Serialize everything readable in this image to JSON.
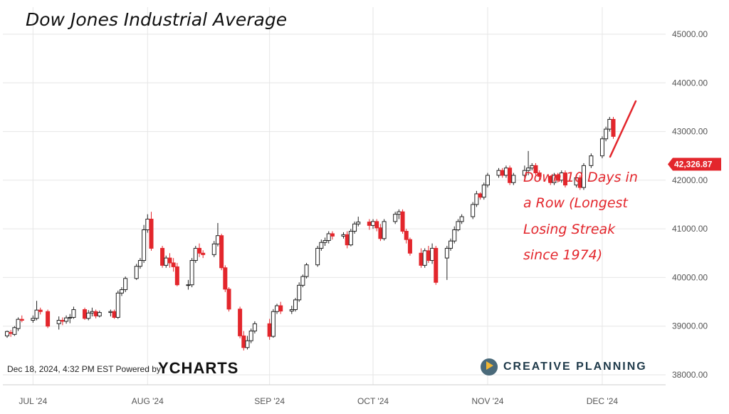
{
  "chart_data": {
    "type": "candlestick",
    "title": "Dow Jones Industrial Average",
    "y_ticks": [
      "45000.00",
      "44000.00",
      "43000.00",
      "42000.00",
      "41000.00",
      "40000.00",
      "39000.00",
      "38000.00"
    ],
    "y_tick_values": [
      45000,
      44000,
      43000,
      42000,
      41000,
      40000,
      39000,
      38000
    ],
    "ylim": [
      37800,
      45300
    ],
    "x_ticks": [
      {
        "label": "JUL '24",
        "date": "2024-07-01"
      },
      {
        "label": "AUG '24",
        "date": "2024-08-01"
      },
      {
        "label": "SEP '24",
        "date": "2024-09-03"
      },
      {
        "label": "OCT '24",
        "date": "2024-10-01"
      },
      {
        "label": "NOV '24",
        "date": "2024-11-01"
      },
      {
        "label": "DEC '24",
        "date": "2024-12-02"
      }
    ],
    "grid": true,
    "last_price_label": "42,326.87",
    "last_price_value": 42326.87,
    "annotation_lines": [
      "Down 10 Days in",
      "a Row (Longest",
      "Losing Streak",
      "since 1974)"
    ],
    "candles": [
      [
        "2024-06-24",
        38800,
        38890,
        38760,
        38910
      ],
      [
        "2024-06-25",
        38870,
        38850,
        38780,
        38920
      ],
      [
        "2024-06-26",
        38830,
        38970,
        38800,
        39000
      ],
      [
        "2024-06-27",
        38950,
        39140,
        38900,
        39180
      ],
      [
        "2024-06-28",
        39140,
        39120,
        39080,
        39220
      ],
      [
        "2024-07-01",
        39120,
        39160,
        39070,
        39220
      ],
      [
        "2024-07-02",
        39160,
        39330,
        39120,
        39520
      ],
      [
        "2024-07-03",
        39330,
        39300,
        39240,
        39380
      ],
      [
        "2024-07-05",
        39300,
        39000,
        38960,
        39340
      ],
      [
        "2024-07-08",
        39050,
        39120,
        38930,
        39200
      ],
      [
        "2024-07-09",
        39120,
        39100,
        39020,
        39180
      ],
      [
        "2024-07-10",
        39100,
        39170,
        39050,
        39220
      ],
      [
        "2024-07-11",
        39170,
        39180,
        39060,
        39250
      ],
      [
        "2024-07-12",
        39180,
        39340,
        39150,
        39400
      ],
      [
        "2024-07-15",
        39340,
        39160,
        39130,
        39380
      ],
      [
        "2024-07-16",
        39160,
        39270,
        39120,
        39330
      ],
      [
        "2024-07-17",
        39270,
        39300,
        39200,
        39380
      ],
      [
        "2024-07-18",
        39300,
        39210,
        39160,
        39340
      ],
      [
        "2024-07-19",
        39210,
        39280,
        39180,
        39320
      ],
      [
        "2024-07-22",
        39280,
        39300,
        39200,
        39340
      ],
      [
        "2024-07-23",
        39300,
        39180,
        39150,
        39340
      ],
      [
        "2024-07-24",
        39180,
        39680,
        39150,
        39730
      ],
      [
        "2024-07-25",
        39680,
        39750,
        39620,
        39800
      ],
      [
        "2024-07-26",
        39750,
        39980,
        39700,
        40020
      ],
      [
        "2024-07-29",
        39980,
        40230,
        39950,
        40280
      ],
      [
        "2024-07-30",
        40230,
        40350,
        40180,
        40400
      ],
      [
        "2024-07-31",
        40350,
        40980,
        40300,
        41080
      ],
      [
        "2024-08-01",
        40980,
        41200,
        40920,
        41300
      ],
      [
        "2024-08-02",
        41200,
        40600,
        40550,
        41350
      ],
      [
        "2024-08-05",
        40600,
        40250,
        40200,
        40650
      ],
      [
        "2024-08-06",
        40250,
        40400,
        40200,
        40450
      ],
      [
        "2024-08-07",
        40400,
        40300,
        40200,
        40500
      ],
      [
        "2024-08-08",
        40300,
        40220,
        40120,
        40400
      ],
      [
        "2024-08-09",
        40220,
        39850,
        39820,
        40300
      ],
      [
        "2024-08-12",
        39850,
        39850,
        39750,
        39950
      ],
      [
        "2024-08-13",
        39850,
        40350,
        39800,
        40400
      ],
      [
        "2024-08-14",
        40350,
        40600,
        40300,
        40650
      ],
      [
        "2024-08-15",
        40600,
        40500,
        40420,
        40700
      ],
      [
        "2024-08-16",
        40500,
        40470,
        40400,
        40560
      ],
      [
        "2024-08-19",
        40470,
        40690,
        40420,
        40750
      ],
      [
        "2024-08-20",
        40690,
        40860,
        40640,
        41120
      ],
      [
        "2024-08-21",
        40860,
        40200,
        40150,
        40900
      ],
      [
        "2024-08-22",
        40200,
        39760,
        39700,
        40250
      ],
      [
        "2024-08-23",
        39760,
        39350,
        39300,
        39800
      ],
      [
        "2024-08-26",
        39350,
        38800,
        38750,
        39400
      ],
      [
        "2024-08-27",
        38800,
        38560,
        38500,
        38900
      ],
      [
        "2024-08-28",
        38560,
        38700,
        38520,
        38800
      ],
      [
        "2024-08-29",
        38700,
        38900,
        38650,
        38950
      ],
      [
        "2024-08-30",
        38900,
        39050,
        38850,
        39100
      ],
      [
        "2024-09-03",
        39050,
        38790,
        38720,
        39150
      ],
      [
        "2024-09-04",
        38790,
        39300,
        38760,
        39350
      ],
      [
        "2024-09-05",
        39300,
        39420,
        39250,
        39460
      ],
      [
        "2024-09-06",
        39420,
        39310,
        39250,
        39500
      ],
      [
        "2024-09-09",
        39310,
        39340,
        39250,
        39420
      ],
      [
        "2024-09-10",
        39340,
        39540,
        39300,
        39580
      ],
      [
        "2024-09-11",
        39540,
        39840,
        39500,
        39900
      ],
      [
        "2024-09-12",
        39840,
        40020,
        39800,
        40060
      ],
      [
        "2024-09-13",
        40020,
        40260,
        39980,
        40300
      ],
      [
        "2024-09-16",
        40260,
        40600,
        40220,
        40650
      ],
      [
        "2024-09-17",
        40600,
        40720,
        40550,
        40780
      ],
      [
        "2024-09-18",
        40720,
        40760,
        40650,
        40820
      ],
      [
        "2024-09-19",
        40760,
        40900,
        40700,
        40950
      ],
      [
        "2024-09-20",
        40900,
        40850,
        40780,
        40950
      ],
      [
        "2024-09-23",
        40850,
        40880,
        40800,
        40930
      ],
      [
        "2024-09-24",
        40880,
        40670,
        40600,
        40950
      ],
      [
        "2024-09-25",
        40670,
        40950,
        40640,
        41000
      ],
      [
        "2024-09-26",
        40950,
        41100,
        40900,
        41150
      ],
      [
        "2024-09-27",
        41100,
        41140,
        41050,
        41250
      ],
      [
        "2024-09-30",
        41140,
        41070,
        40980,
        41200
      ],
      [
        "2024-10-01",
        41070,
        41150,
        41000,
        41200
      ],
      [
        "2024-10-02",
        41150,
        41020,
        40950,
        41200
      ],
      [
        "2024-10-03",
        41020,
        40800,
        40750,
        41100
      ],
      [
        "2024-10-04",
        40800,
        41150,
        40760,
        41200
      ],
      [
        "2024-10-07",
        41150,
        41300,
        41100,
        41350
      ],
      [
        "2024-10-08",
        41300,
        41350,
        41200,
        41400
      ],
      [
        "2024-10-09",
        41350,
        40950,
        40900,
        41400
      ],
      [
        "2024-10-10",
        40950,
        40780,
        40700,
        41000
      ],
      [
        "2024-10-11",
        40780,
        40500,
        40450,
        40820
      ],
      [
        "2024-10-14",
        40500,
        40250,
        40200,
        40600
      ],
      [
        "2024-10-15",
        40250,
        40550,
        40200,
        40600
      ],
      [
        "2024-10-16",
        40550,
        40350,
        40300,
        40650
      ],
      [
        "2024-10-17",
        40350,
        40600,
        40280,
        40700
      ],
      [
        "2024-10-18",
        40600,
        39900,
        39850,
        40650
      ],
      [
        "2024-10-21",
        40400,
        40600,
        39950,
        40650
      ],
      [
        "2024-10-22",
        40600,
        40750,
        40550,
        40800
      ],
      [
        "2024-10-23",
        40750,
        40980,
        40700,
        41050
      ],
      [
        "2024-10-24",
        40980,
        41150,
        40950,
        41200
      ],
      [
        "2024-10-25",
        41150,
        41250,
        41100,
        41300
      ],
      [
        "2024-10-28",
        41250,
        41500,
        41200,
        41550
      ],
      [
        "2024-10-29",
        41500,
        41720,
        41450,
        41780
      ],
      [
        "2024-10-30",
        41720,
        41650,
        41600,
        41750
      ],
      [
        "2024-10-31",
        41650,
        41900,
        41600,
        41950
      ],
      [
        "2024-11-01",
        41900,
        42100,
        41850,
        42150
      ],
      [
        "2024-11-04",
        42100,
        42200,
        42050,
        42250
      ],
      [
        "2024-11-05",
        42200,
        42100,
        42050,
        42250
      ],
      [
        "2024-11-06",
        42100,
        42250,
        42050,
        42300
      ],
      [
        "2024-11-07",
        42250,
        41950,
        41900,
        42300
      ],
      [
        "2024-11-08",
        41950,
        42100,
        41900,
        42150
      ],
      [
        "2024-11-11",
        42100,
        42200,
        42050,
        42300
      ],
      [
        "2024-11-12",
        42200,
        42250,
        42100,
        42600
      ],
      [
        "2024-11-13",
        42250,
        42300,
        42200,
        42350
      ],
      [
        "2024-11-14",
        42300,
        42150,
        42100,
        42350
      ],
      [
        "2024-11-15",
        42150,
        42080,
        42000,
        42200
      ],
      [
        "2024-11-18",
        42080,
        41950,
        41900,
        42100
      ],
      [
        "2024-11-19",
        41950,
        42100,
        41900,
        42150
      ],
      [
        "2024-11-20",
        42100,
        42000,
        41950,
        42150
      ],
      [
        "2024-11-21",
        42000,
        42150,
        41950,
        42200
      ],
      [
        "2024-11-22",
        42150,
        41900,
        41850,
        42200
      ],
      [
        "2024-11-25",
        41900,
        42050,
        41850,
        42100
      ],
      [
        "2024-11-26",
        42050,
        41850,
        41800,
        42100
      ],
      [
        "2024-11-27",
        41850,
        42300,
        41800,
        42350
      ],
      [
        "2024-11-29",
        42300,
        42500,
        42250,
        42550
      ],
      [
        "2024-12-02",
        42500,
        42850,
        42450,
        42900
      ],
      [
        "2024-12-03",
        42850,
        43050,
        42800,
        43100
      ],
      [
        "2024-12-04",
        43050,
        43250,
        43000,
        43300
      ],
      [
        "2024-12-05",
        43250,
        42900,
        42850,
        43300
      ]
    ]
  }
}
